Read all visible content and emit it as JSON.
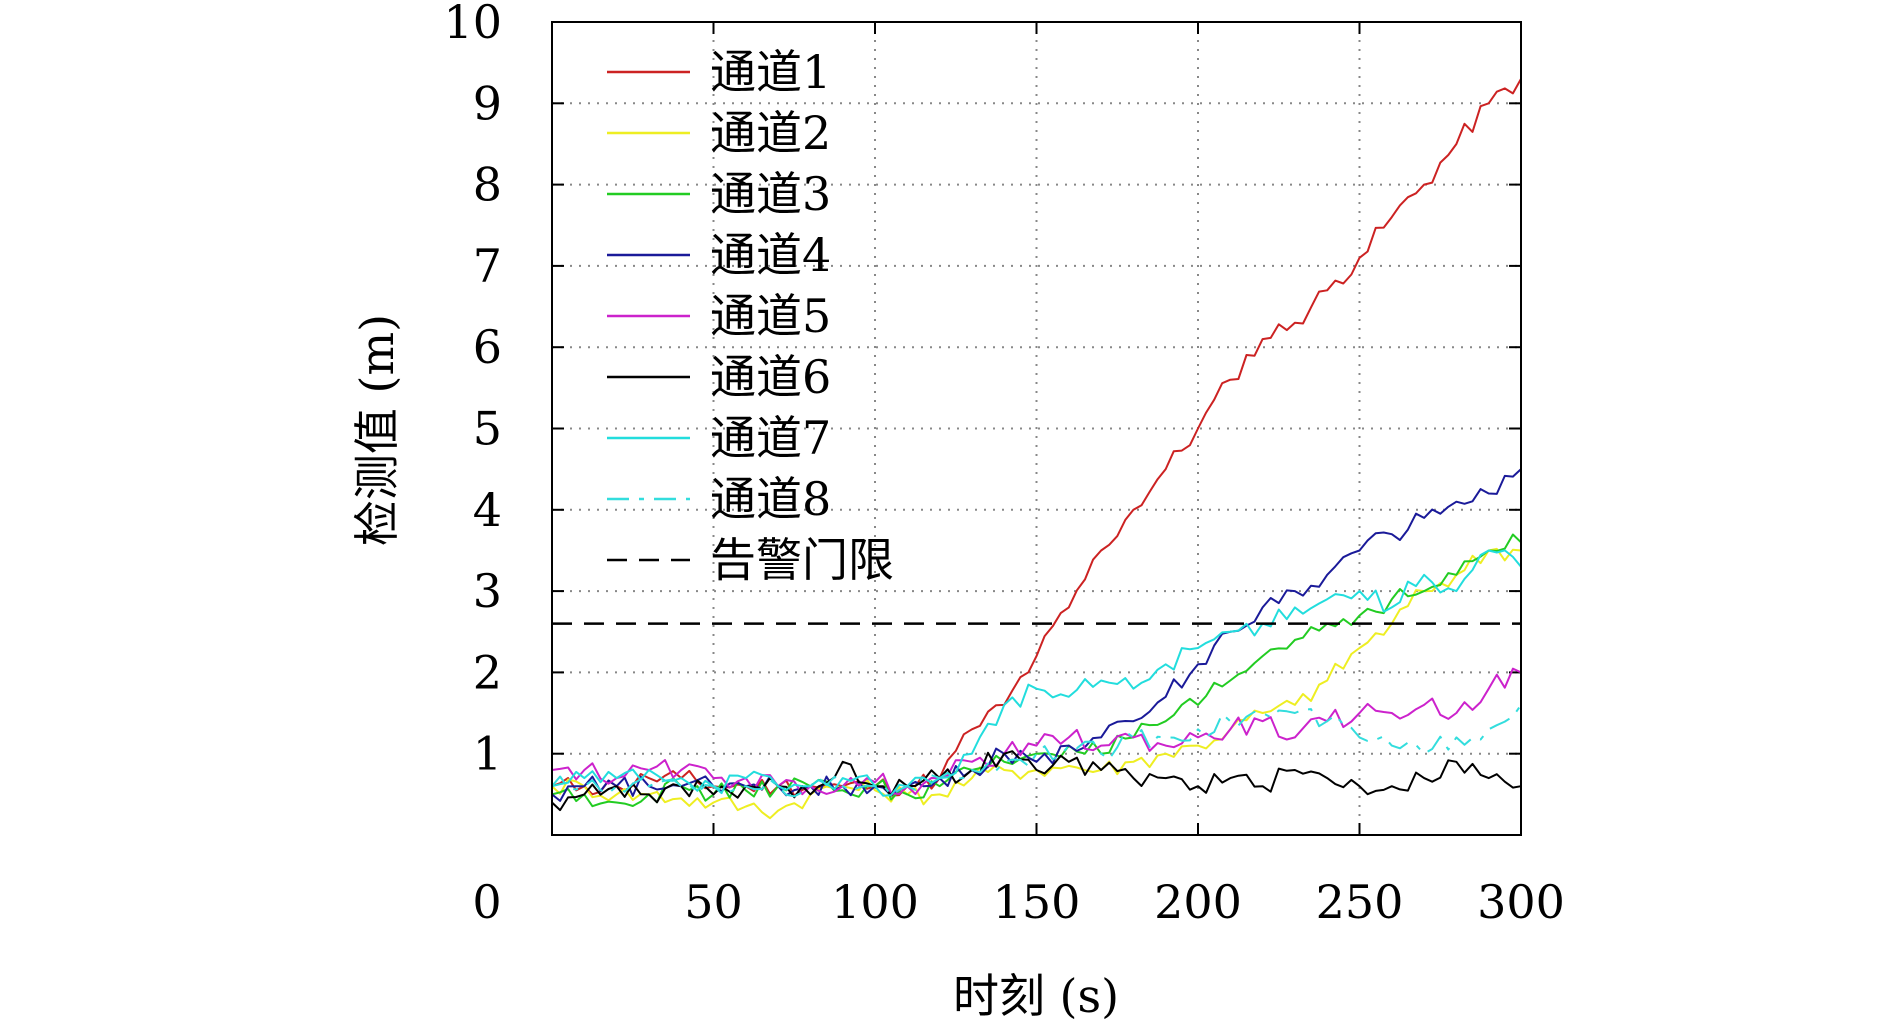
{
  "chart_data": {
    "type": "line",
    "title": "",
    "xlabel": "时刻 (s)",
    "ylabel": "检测值 (m)",
    "xlim": [
      0,
      300
    ],
    "ylim": [
      0,
      10
    ],
    "x_ticks": [
      0,
      50,
      100,
      150,
      200,
      250,
      300
    ],
    "y_ticks": [
      1,
      2,
      3,
      4,
      5,
      6,
      7,
      8,
      9,
      10
    ],
    "x_tick_labels": [
      "0",
      "50",
      "100",
      "150",
      "200",
      "250",
      "300"
    ],
    "y_tick_labels": [
      "1",
      "2",
      "3",
      "4",
      "5",
      "6",
      "7",
      "8",
      "9",
      "10"
    ],
    "grid": true,
    "legend_position": "top-left",
    "x": [
      0,
      10,
      20,
      30,
      40,
      50,
      60,
      70,
      80,
      90,
      100,
      110,
      120,
      130,
      140,
      150,
      160,
      170,
      180,
      190,
      200,
      210,
      220,
      230,
      240,
      250,
      260,
      270,
      280,
      290,
      300
    ],
    "series": [
      {
        "name": "通道1",
        "color": "#cc2222",
        "dash": "solid",
        "values": [
          0.6,
          0.6,
          0.6,
          0.7,
          0.7,
          0.6,
          0.6,
          0.6,
          0.6,
          0.6,
          0.6,
          0.6,
          0.7,
          1.3,
          1.6,
          2.2,
          2.8,
          3.5,
          4.0,
          4.5,
          5.0,
          5.6,
          6.1,
          6.3,
          6.7,
          7.1,
          7.6,
          8.0,
          8.5,
          9.0,
          9.3
        ]
      },
      {
        "name": "通道2",
        "color": "#eeee22",
        "dash": "solid",
        "values": [
          0.6,
          0.6,
          0.5,
          0.5,
          0.45,
          0.4,
          0.35,
          0.3,
          0.5,
          0.6,
          0.55,
          0.5,
          0.5,
          0.7,
          0.8,
          0.8,
          0.85,
          0.8,
          0.9,
          1.0,
          1.1,
          1.3,
          1.5,
          1.6,
          1.9,
          2.3,
          2.6,
          3.0,
          3.2,
          3.5,
          3.5
        ]
      },
      {
        "name": "通道3",
        "color": "#22cc22",
        "dash": "solid",
        "values": [
          0.5,
          0.5,
          0.4,
          0.5,
          0.6,
          0.5,
          0.55,
          0.6,
          0.6,
          0.55,
          0.6,
          0.5,
          0.6,
          0.8,
          0.9,
          1.0,
          1.1,
          1.0,
          1.2,
          1.4,
          1.6,
          1.9,
          2.2,
          2.4,
          2.6,
          2.7,
          2.9,
          3.0,
          3.2,
          3.5,
          3.6
        ]
      },
      {
        "name": "通道4",
        "color": "#1a1a99",
        "dash": "solid",
        "values": [
          0.5,
          0.6,
          0.6,
          0.6,
          0.6,
          0.6,
          0.6,
          0.6,
          0.6,
          0.6,
          0.6,
          0.6,
          0.7,
          0.8,
          1.0,
          0.9,
          1.1,
          1.2,
          1.4,
          1.7,
          2.1,
          2.5,
          2.8,
          3.0,
          3.2,
          3.5,
          3.7,
          3.9,
          4.1,
          4.2,
          4.5
        ]
      },
      {
        "name": "通道5",
        "color": "#cc22cc",
        "dash": "solid",
        "values": [
          0.8,
          0.8,
          0.7,
          0.8,
          0.8,
          0.7,
          0.7,
          0.6,
          0.6,
          0.6,
          0.65,
          0.6,
          0.7,
          0.9,
          1.0,
          1.1,
          1.2,
          1.1,
          1.2,
          1.1,
          1.2,
          1.3,
          1.4,
          1.2,
          1.4,
          1.5,
          1.5,
          1.6,
          1.5,
          1.8,
          2.0
        ]
      },
      {
        "name": "通道6",
        "color": "#000000",
        "dash": "solid",
        "values": [
          0.4,
          0.5,
          0.6,
          0.5,
          0.6,
          0.5,
          0.6,
          0.6,
          0.5,
          0.9,
          0.6,
          0.6,
          0.7,
          0.8,
          1.0,
          0.8,
          0.9,
          0.8,
          0.7,
          0.7,
          0.6,
          0.7,
          0.6,
          0.8,
          0.7,
          0.6,
          0.6,
          0.7,
          0.9,
          0.7,
          0.6
        ]
      },
      {
        "name": "通道7",
        "color": "#22dddd",
        "dash": "solid",
        "values": [
          0.6,
          0.7,
          0.7,
          0.8,
          0.7,
          0.6,
          0.7,
          0.6,
          0.6,
          0.7,
          0.6,
          0.6,
          0.7,
          1.0,
          1.6,
          1.8,
          1.7,
          1.9,
          1.8,
          2.1,
          2.3,
          2.5,
          2.6,
          2.8,
          2.9,
          3.0,
          2.8,
          3.2,
          3.0,
          3.5,
          3.3
        ]
      },
      {
        "name": "通道8",
        "color": "#33dddd",
        "dash": "dashdot",
        "values": [
          0.6,
          0.6,
          0.6,
          0.6,
          0.6,
          0.6,
          0.6,
          0.6,
          0.6,
          0.6,
          0.6,
          0.6,
          0.7,
          0.8,
          0.9,
          1.0,
          1.1,
          1.0,
          1.2,
          1.2,
          1.3,
          1.4,
          1.5,
          1.5,
          1.4,
          1.2,
          1.1,
          1.0,
          1.2,
          1.3,
          1.6
        ]
      },
      {
        "name": "告警门限",
        "color": "#000000",
        "dash": "dashed",
        "values": [
          2.6,
          2.6,
          2.6,
          2.6,
          2.6,
          2.6,
          2.6,
          2.6,
          2.6,
          2.6,
          2.6,
          2.6,
          2.6,
          2.6,
          2.6,
          2.6,
          2.6,
          2.6,
          2.6,
          2.6,
          2.6,
          2.6,
          2.6,
          2.6,
          2.6,
          2.6,
          2.6,
          2.6,
          2.6,
          2.6,
          2.6
        ]
      }
    ]
  }
}
